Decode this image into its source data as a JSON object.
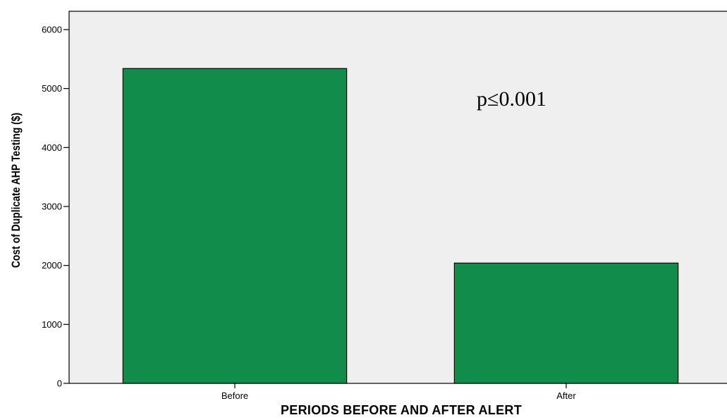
{
  "chart_data": {
    "type": "bar",
    "categories": [
      "Before",
      "After"
    ],
    "values": [
      5340,
      2040
    ],
    "xlabel": "PERIODS BEFORE AND AFTER ALERT",
    "ylabel": "Cost of Duplicate AHP Testing ($)",
    "ylim": [
      0,
      6000
    ],
    "yticks": [
      0,
      1000,
      2000,
      3000,
      4000,
      5000,
      6000
    ],
    "annotation": "p≤0.001",
    "grid": false,
    "legend": "none",
    "colors": {
      "bar": "#118c4a",
      "plot_background": "#efefef"
    }
  }
}
